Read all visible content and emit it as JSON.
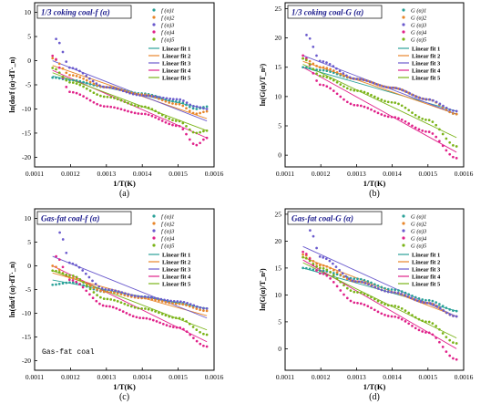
{
  "chart_data": [
    {
      "id": "a",
      "type": "scatter",
      "title": "1/3 coking coal-f (α)",
      "caption": "(a)",
      "xlabel": "1/T(K)",
      "ylabel": "ln(dα/f (α)·dT·_n)",
      "xlim": [
        0.0011,
        0.0016
      ],
      "ylim": [
        -22,
        12
      ],
      "xticks": [
        "0.0011",
        "0.0012",
        "0.0013",
        "0.0014",
        "0.0015",
        "0.0016"
      ],
      "yticks": [
        "-20",
        "-15",
        "-10",
        "-5",
        "0",
        "5",
        "10"
      ],
      "grid": false,
      "legend_position": "top-right",
      "series": [
        {
          "name": "f (α)1",
          "color": "#2aa198",
          "x": [
            0.00115,
            0.0012,
            0.0013,
            0.0014,
            0.0015,
            0.00155,
            0.00158
          ],
          "y": [
            -3.5,
            -4.0,
            -5.5,
            -6.8,
            -8.5,
            -10.0,
            -9.5
          ]
        },
        {
          "name": "f (α)2",
          "color": "#e8862a",
          "x": [
            0.00115,
            0.0012,
            0.0013,
            0.0014,
            0.0015,
            0.00155,
            0.00158
          ],
          "y": [
            0.5,
            -3.0,
            -5.5,
            -7.0,
            -9.0,
            -11.0,
            -10.5
          ]
        },
        {
          "name": "f (α)3",
          "color": "#6a5acd",
          "x": [
            0.00116,
            0.0012,
            0.0013,
            0.0014,
            0.0015,
            0.00155,
            0.00158
          ],
          "y": [
            4.5,
            -1.5,
            -5.5,
            -7.2,
            -8.0,
            -9.5,
            -10.0
          ]
        },
        {
          "name": "f (α)4",
          "color": "#e0218a",
          "x": [
            0.00115,
            0.0012,
            0.0013,
            0.0014,
            0.0015,
            0.00155,
            0.00158
          ],
          "y": [
            1.0,
            -6.5,
            -9.5,
            -11.0,
            -13.5,
            -17.5,
            -16.0
          ]
        },
        {
          "name": "f (α)5",
          "color": "#7ab317",
          "x": [
            0.00115,
            0.0012,
            0.0013,
            0.0014,
            0.0015,
            0.00155,
            0.00158
          ],
          "y": [
            -1.5,
            -4.5,
            -7.5,
            -9.5,
            -12.5,
            -15.0,
            -14.5
          ]
        }
      ],
      "fits": [
        {
          "name": "Linear fit 1",
          "color": "#2aa198",
          "y1": -3.2,
          "y2": -10.0
        },
        {
          "name": "Linear fit 2",
          "color": "#e8862a",
          "y1": -1.0,
          "y2": -12.0
        },
        {
          "name": "Linear fit 3",
          "color": "#6a5acd",
          "y1": 0.0,
          "y2": -12.5
        },
        {
          "name": "Linear fit 4",
          "color": "#e0218a",
          "y1": -2.0,
          "y2": -16.0
        },
        {
          "name": "Linear fit 5",
          "color": "#7ab317",
          "y1": -2.5,
          "y2": -14.5
        }
      ]
    },
    {
      "id": "b",
      "type": "scatter",
      "title": "1/3 coking coal-G (α)",
      "caption": "(b)",
      "xlabel": "1/T(K)",
      "ylabel": "ln(G(α)/T_n²)",
      "xlim": [
        0.0011,
        0.0016
      ],
      "ylim": [
        -2,
        26
      ],
      "xticks": [
        "0.0011",
        "0.0012",
        "0.0013",
        "0.0014",
        "0.0015",
        "0.0016"
      ],
      "yticks": [
        "0",
        "5",
        "10",
        "15",
        "20",
        "25"
      ],
      "grid": false,
      "legend_position": "top-right",
      "series": [
        {
          "name": "G (α)1",
          "color": "#2aa198",
          "x": [
            0.00115,
            0.0012,
            0.0013,
            0.0014,
            0.0015,
            0.00158
          ],
          "y": [
            15.0,
            14.5,
            13.0,
            11.5,
            9.5,
            7.0
          ]
        },
        {
          "name": "G (α)2",
          "color": "#e8862a",
          "x": [
            0.00115,
            0.0012,
            0.0013,
            0.0014,
            0.0015,
            0.00158
          ],
          "y": [
            16.5,
            15.0,
            13.0,
            11.5,
            9.5,
            7.0
          ]
        },
        {
          "name": "G (α)3",
          "color": "#6a5acd",
          "x": [
            0.00116,
            0.0012,
            0.0013,
            0.0014,
            0.0015,
            0.00158
          ],
          "y": [
            20.5,
            16.0,
            13.0,
            11.5,
            9.5,
            7.5
          ]
        },
        {
          "name": "G (α)4",
          "color": "#e0218a",
          "x": [
            0.00115,
            0.0012,
            0.0013,
            0.0014,
            0.0015,
            0.00158
          ],
          "y": [
            17.0,
            12.0,
            8.5,
            6.5,
            4.0,
            -0.5
          ]
        },
        {
          "name": "G (α)5",
          "color": "#7ab317",
          "x": [
            0.00115,
            0.0012,
            0.0013,
            0.0014,
            0.0015,
            0.00158
          ],
          "y": [
            16.5,
            13.5,
            11.0,
            9.0,
            6.0,
            1.5
          ]
        }
      ],
      "fits": [
        {
          "name": "Linear fit 1",
          "color": "#2aa198",
          "y1": 15.0,
          "y2": 7.5
        },
        {
          "name": "Linear fit 2",
          "color": "#e8862a",
          "y1": 16.0,
          "y2": 7.0
        },
        {
          "name": "Linear fit 3",
          "color": "#6a5acd",
          "y1": 17.0,
          "y2": 7.0
        },
        {
          "name": "Linear fit 4",
          "color": "#e0218a",
          "y1": 15.0,
          "y2": 0.5
        },
        {
          "name": "Linear fit 5",
          "color": "#7ab317",
          "y1": 15.5,
          "y2": 3.0
        }
      ]
    },
    {
      "id": "c",
      "type": "scatter",
      "title": "Gas-fat coal-f (α)",
      "caption": "(c)",
      "xlabel": "1/T(K)",
      "ylabel": "ln(dα/f (α)·dT·_n)",
      "annotation": "Gas-fat coal",
      "xlim": [
        0.0011,
        0.0016
      ],
      "ylim": [
        -22,
        12
      ],
      "xticks": [
        "0.0011",
        "0.0012",
        "0.0013",
        "0.0014",
        "0.0015",
        "0.0016"
      ],
      "yticks": [
        "-20",
        "-15",
        "-10",
        "-5",
        "0",
        "5",
        "10"
      ],
      "grid": false,
      "legend_position": "top-right",
      "series": [
        {
          "name": "f (α)1",
          "color": "#2aa198",
          "x": [
            0.00115,
            0.0012,
            0.0013,
            0.0014,
            0.0015,
            0.00158
          ],
          "y": [
            -4.0,
            -3.5,
            -5.5,
            -6.5,
            -7.8,
            -9.0
          ]
        },
        {
          "name": "f (α)2",
          "color": "#e8862a",
          "x": [
            0.00115,
            0.0012,
            0.0013,
            0.0014,
            0.0015,
            0.00158
          ],
          "y": [
            0.0,
            -2.5,
            -5.5,
            -6.8,
            -8.0,
            -9.5
          ]
        },
        {
          "name": "f (α)3",
          "color": "#6a5acd",
          "x": [
            0.00117,
            0.0012,
            0.0013,
            0.0014,
            0.0015,
            0.00158
          ],
          "y": [
            7.0,
            0.5,
            -5.0,
            -6.5,
            -7.5,
            -9.0
          ]
        },
        {
          "name": "f (α)4",
          "color": "#e0218a",
          "x": [
            0.00116,
            0.0012,
            0.0013,
            0.0014,
            0.0015,
            0.00158
          ],
          "y": [
            2.0,
            -3.0,
            -8.5,
            -11.0,
            -13.0,
            -17.0
          ]
        },
        {
          "name": "f (α)5",
          "color": "#7ab317",
          "x": [
            0.00115,
            0.0012,
            0.0013,
            0.0014,
            0.0015,
            0.00158
          ],
          "y": [
            -1.0,
            -2.0,
            -7.0,
            -9.0,
            -11.0,
            -14.5
          ]
        }
      ],
      "fits": [
        {
          "name": "Linear fit 1",
          "color": "#2aa198",
          "y1": -3.0,
          "y2": -9.0
        },
        {
          "name": "Linear fit 2",
          "color": "#e8862a",
          "y1": -1.5,
          "y2": -10.5
        },
        {
          "name": "Linear fit 3",
          "color": "#6a5acd",
          "y1": 2.0,
          "y2": -11.0
        },
        {
          "name": "Linear fit 4",
          "color": "#e0218a",
          "y1": 0.0,
          "y2": -16.0
        },
        {
          "name": "Linear fit 5",
          "color": "#7ab317",
          "y1": -1.0,
          "y2": -13.5
        }
      ]
    },
    {
      "id": "d",
      "type": "scatter",
      "title": "Gas-fat coal-G (α)",
      "caption": "(d)",
      "xlabel": "1/T(K)",
      "ylabel": "ln(G(α)/T_n²)",
      "xlim": [
        0.0011,
        0.0016
      ],
      "ylim": [
        -4,
        26
      ],
      "xticks": [
        "0.0011",
        "0.0012",
        "0.0013",
        "0.0014",
        "0.0015",
        "0.0016"
      ],
      "yticks": [
        "0",
        "5",
        "10",
        "15",
        "20",
        "25"
      ],
      "grid": false,
      "legend_position": "top-right",
      "series": [
        {
          "name": "G (α)1",
          "color": "#2aa198",
          "x": [
            0.00115,
            0.0012,
            0.0013,
            0.0014,
            0.0015,
            0.00158
          ],
          "y": [
            15.0,
            14.5,
            13.0,
            11.0,
            9.0,
            7.0
          ]
        },
        {
          "name": "G (α)2",
          "color": "#e8862a",
          "x": [
            0.00115,
            0.0012,
            0.0013,
            0.0014,
            0.0015,
            0.00158
          ],
          "y": [
            17.5,
            15.5,
            12.5,
            10.5,
            8.5,
            6.0
          ]
        },
        {
          "name": "G (α)3",
          "color": "#6a5acd",
          "x": [
            0.00117,
            0.0012,
            0.0013,
            0.0014,
            0.0015,
            0.00158
          ],
          "y": [
            22.0,
            17.0,
            12.5,
            10.5,
            8.5,
            6.0
          ]
        },
        {
          "name": "G (α)4",
          "color": "#e0218a",
          "x": [
            0.00115,
            0.0012,
            0.0013,
            0.0014,
            0.0015,
            0.00158
          ],
          "y": [
            18.0,
            14.0,
            8.5,
            6.0,
            3.0,
            -2.0
          ]
        },
        {
          "name": "G (α)5",
          "color": "#7ab317",
          "x": [
            0.00115,
            0.0012,
            0.0013,
            0.0014,
            0.0015,
            0.00158
          ],
          "y": [
            17.0,
            15.0,
            10.5,
            8.0,
            5.0,
            1.0
          ]
        }
      ],
      "fits": [
        {
          "name": "Linear fit 1",
          "color": "#2aa198",
          "y1": 15.0,
          "y2": 7.0
        },
        {
          "name": "Linear fit 2",
          "color": "#e8862a",
          "y1": 17.0,
          "y2": 6.0
        },
        {
          "name": "Linear fit 3",
          "color": "#6a5acd",
          "y1": 19.0,
          "y2": 6.0
        },
        {
          "name": "Linear fit 4",
          "color": "#e0218a",
          "y1": 16.5,
          "y2": 0.0
        },
        {
          "name": "Linear fit 5",
          "color": "#7ab317",
          "y1": 16.0,
          "y2": 2.0
        }
      ]
    }
  ]
}
